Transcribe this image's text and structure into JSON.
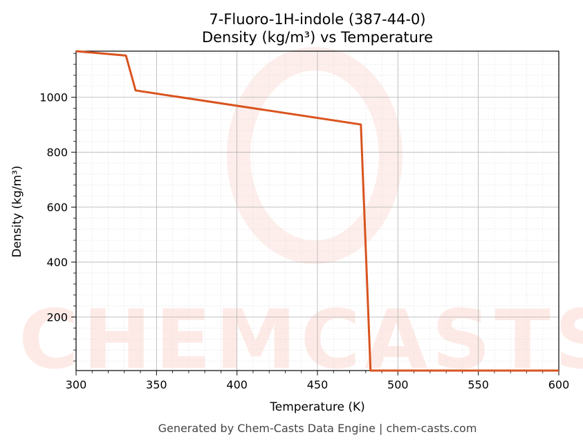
{
  "chart_data": {
    "type": "line",
    "title_line1": "7-Fluoro-1H-indole (387-44-0)",
    "title_line2": "Density (kg/m³) vs Temperature",
    "xlabel": "Temperature (K)",
    "ylabel": "Density (kg/m³)",
    "xlim": [
      300,
      600
    ],
    "ylim": [
      5,
      1168
    ],
    "x_ticks": [
      300,
      350,
      400,
      450,
      500,
      550,
      600
    ],
    "y_ticks": [
      200,
      400,
      600,
      800,
      1000
    ],
    "grid": true,
    "series": [
      {
        "color": "#d9531e",
        "points": [
          [
            300,
            1168
          ],
          [
            331,
            1152
          ],
          [
            337,
            1025
          ],
          [
            477,
            901
          ],
          [
            483,
            5
          ],
          [
            600,
            5
          ]
        ]
      }
    ],
    "watermark": "CHEMCASTS"
  },
  "footer": "Generated by Chem-Casts Data Engine | chem-casts.com"
}
